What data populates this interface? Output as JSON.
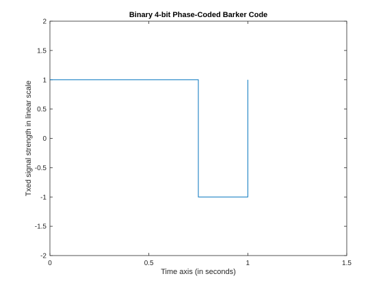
{
  "chart_data": {
    "type": "line",
    "title": "Binary 4-bit Phase-Coded Barker Code",
    "xlabel": "Time axis (in seconds)",
    "ylabel": "Txed signal strength in linear scale",
    "xlim": [
      0,
      1.5
    ],
    "ylim": [
      -2,
      2
    ],
    "xticks": [
      0,
      0.5,
      1,
      1.5
    ],
    "xtick_labels": [
      "0",
      "0.5",
      "1",
      "1.5"
    ],
    "yticks": [
      -2,
      -1.5,
      -1,
      -0.5,
      0,
      0.5,
      1,
      1.5,
      2
    ],
    "ytick_labels": [
      "-2",
      "-1.5",
      "-1",
      "-0.5",
      "0",
      "0.5",
      "1",
      "1.5",
      "2"
    ],
    "grid": false,
    "series": [
      {
        "color": "#0072bd",
        "x": [
          0,
          0.75,
          0.75,
          1.0,
          1.0
        ],
        "y": [
          1,
          1,
          -1,
          -1,
          1
        ]
      }
    ]
  }
}
